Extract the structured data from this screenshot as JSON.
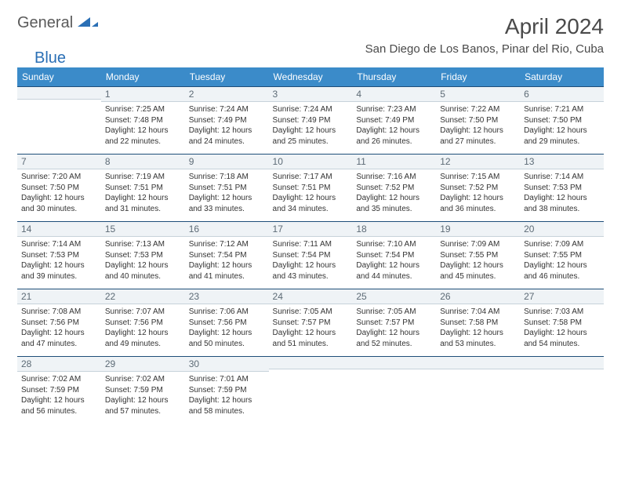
{
  "brand": {
    "part1": "General",
    "part2": "Blue"
  },
  "title": "April 2024",
  "location": "San Diego de Los Banos, Pinar del Rio, Cuba",
  "colors": {
    "header_bg": "#3b8bc9",
    "header_text": "#ffffff",
    "daynum_bg": "#eff3f6",
    "daynum_border_top": "#1f4e79",
    "daynum_border_bottom": "#c7d2da",
    "body_text": "#333333",
    "brand_gray": "#5a5a5a",
    "brand_blue": "#2a6fb5",
    "title_color": "#4a4a4a"
  },
  "fonts": {
    "base_family": "Arial, Helvetica, sans-serif",
    "title_size_pt": 21,
    "location_size_pt": 11,
    "weekday_size_pt": 9,
    "daynum_size_pt": 9,
    "detail_size_pt": 7.5
  },
  "weekdays": [
    "Sunday",
    "Monday",
    "Tuesday",
    "Wednesday",
    "Thursday",
    "Friday",
    "Saturday"
  ],
  "layout": {
    "columns": 7,
    "rows": 5,
    "start_weekday_index": 1
  },
  "weeks": [
    [
      null,
      {
        "n": "1",
        "sr": "7:25 AM",
        "ss": "7:48 PM",
        "dl": "12 hours and 22 minutes."
      },
      {
        "n": "2",
        "sr": "7:24 AM",
        "ss": "7:49 PM",
        "dl": "12 hours and 24 minutes."
      },
      {
        "n": "3",
        "sr": "7:24 AM",
        "ss": "7:49 PM",
        "dl": "12 hours and 25 minutes."
      },
      {
        "n": "4",
        "sr": "7:23 AM",
        "ss": "7:49 PM",
        "dl": "12 hours and 26 minutes."
      },
      {
        "n": "5",
        "sr": "7:22 AM",
        "ss": "7:50 PM",
        "dl": "12 hours and 27 minutes."
      },
      {
        "n": "6",
        "sr": "7:21 AM",
        "ss": "7:50 PM",
        "dl": "12 hours and 29 minutes."
      }
    ],
    [
      {
        "n": "7",
        "sr": "7:20 AM",
        "ss": "7:50 PM",
        "dl": "12 hours and 30 minutes."
      },
      {
        "n": "8",
        "sr": "7:19 AM",
        "ss": "7:51 PM",
        "dl": "12 hours and 31 minutes."
      },
      {
        "n": "9",
        "sr": "7:18 AM",
        "ss": "7:51 PM",
        "dl": "12 hours and 33 minutes."
      },
      {
        "n": "10",
        "sr": "7:17 AM",
        "ss": "7:51 PM",
        "dl": "12 hours and 34 minutes."
      },
      {
        "n": "11",
        "sr": "7:16 AM",
        "ss": "7:52 PM",
        "dl": "12 hours and 35 minutes."
      },
      {
        "n": "12",
        "sr": "7:15 AM",
        "ss": "7:52 PM",
        "dl": "12 hours and 36 minutes."
      },
      {
        "n": "13",
        "sr": "7:14 AM",
        "ss": "7:53 PM",
        "dl": "12 hours and 38 minutes."
      }
    ],
    [
      {
        "n": "14",
        "sr": "7:14 AM",
        "ss": "7:53 PM",
        "dl": "12 hours and 39 minutes."
      },
      {
        "n": "15",
        "sr": "7:13 AM",
        "ss": "7:53 PM",
        "dl": "12 hours and 40 minutes."
      },
      {
        "n": "16",
        "sr": "7:12 AM",
        "ss": "7:54 PM",
        "dl": "12 hours and 41 minutes."
      },
      {
        "n": "17",
        "sr": "7:11 AM",
        "ss": "7:54 PM",
        "dl": "12 hours and 43 minutes."
      },
      {
        "n": "18",
        "sr": "7:10 AM",
        "ss": "7:54 PM",
        "dl": "12 hours and 44 minutes."
      },
      {
        "n": "19",
        "sr": "7:09 AM",
        "ss": "7:55 PM",
        "dl": "12 hours and 45 minutes."
      },
      {
        "n": "20",
        "sr": "7:09 AM",
        "ss": "7:55 PM",
        "dl": "12 hours and 46 minutes."
      }
    ],
    [
      {
        "n": "21",
        "sr": "7:08 AM",
        "ss": "7:56 PM",
        "dl": "12 hours and 47 minutes."
      },
      {
        "n": "22",
        "sr": "7:07 AM",
        "ss": "7:56 PM",
        "dl": "12 hours and 49 minutes."
      },
      {
        "n": "23",
        "sr": "7:06 AM",
        "ss": "7:56 PM",
        "dl": "12 hours and 50 minutes."
      },
      {
        "n": "24",
        "sr": "7:05 AM",
        "ss": "7:57 PM",
        "dl": "12 hours and 51 minutes."
      },
      {
        "n": "25",
        "sr": "7:05 AM",
        "ss": "7:57 PM",
        "dl": "12 hours and 52 minutes."
      },
      {
        "n": "26",
        "sr": "7:04 AM",
        "ss": "7:58 PM",
        "dl": "12 hours and 53 minutes."
      },
      {
        "n": "27",
        "sr": "7:03 AM",
        "ss": "7:58 PM",
        "dl": "12 hours and 54 minutes."
      }
    ],
    [
      {
        "n": "28",
        "sr": "7:02 AM",
        "ss": "7:59 PM",
        "dl": "12 hours and 56 minutes."
      },
      {
        "n": "29",
        "sr": "7:02 AM",
        "ss": "7:59 PM",
        "dl": "12 hours and 57 minutes."
      },
      {
        "n": "30",
        "sr": "7:01 AM",
        "ss": "7:59 PM",
        "dl": "12 hours and 58 minutes."
      },
      null,
      null,
      null,
      null
    ]
  ],
  "labels": {
    "sunrise": "Sunrise:",
    "sunset": "Sunset:",
    "daylight": "Daylight:"
  }
}
